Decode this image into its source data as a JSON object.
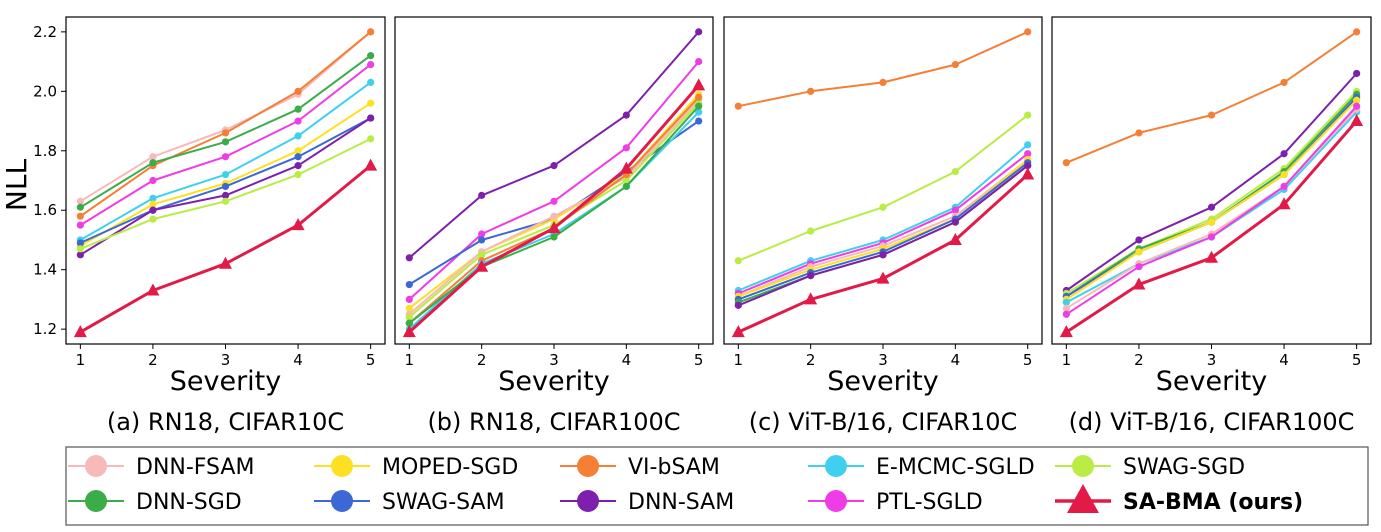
{
  "figure": {
    "ylabel": "NLL",
    "xlabel": "Severity",
    "legend_location": "bottom-center"
  },
  "legend": [
    {
      "name": "DNN-FSAM",
      "color": "#f8b9b9",
      "marker": "circle",
      "bold": false
    },
    {
      "name": "DNN-SGD",
      "color": "#3aac48",
      "marker": "circle",
      "bold": false
    },
    {
      "name": "MOPED-SGD",
      "color": "#fde021",
      "marker": "circle",
      "bold": false
    },
    {
      "name": "SWAG-SAM",
      "color": "#3c68d6",
      "marker": "circle",
      "bold": false
    },
    {
      "name": "VI-bSAM",
      "color": "#f47f35",
      "marker": "circle",
      "bold": false
    },
    {
      "name": "DNN-SAM",
      "color": "#7d20ad",
      "marker": "circle",
      "bold": false
    },
    {
      "name": "E-MCMC-SGLD",
      "color": "#3fd0ef",
      "marker": "circle",
      "bold": false
    },
    {
      "name": "PTL-SGLD",
      "color": "#f03ce6",
      "marker": "circle",
      "bold": false
    },
    {
      "name": "SWAG-SGD",
      "color": "#b9ec45",
      "marker": "circle",
      "bold": false
    },
    {
      "name": "SA-BMA (ours)",
      "color": "#e21a48",
      "marker": "triangle",
      "bold": true
    }
  ],
  "chart_data": [
    {
      "type": "line",
      "caption": "(a) RN18, CIFAR10C",
      "xlabel": "Severity",
      "ylabel": "NLL",
      "x": [
        1,
        2,
        3,
        4,
        5
      ],
      "xticks": [
        "1",
        "2",
        "3",
        "4",
        "5"
      ],
      "yticks": [
        "1.2",
        "1.4",
        "1.6",
        "1.8",
        "2.0",
        "2.2"
      ],
      "ylim": [
        1.15,
        2.25
      ],
      "series": [
        {
          "name": "DNN-FSAM",
          "values": [
            1.63,
            1.78,
            1.87,
            1.99,
            2.2
          ]
        },
        {
          "name": "VI-bSAM",
          "values": [
            1.58,
            1.75,
            1.86,
            2.0,
            2.2
          ]
        },
        {
          "name": "DNN-SGD",
          "values": [
            1.61,
            1.76,
            1.83,
            1.94,
            2.12
          ]
        },
        {
          "name": "E-MCMC-SGLD",
          "values": [
            1.5,
            1.64,
            1.72,
            1.85,
            2.03
          ]
        },
        {
          "name": "PTL-SGLD",
          "values": [
            1.55,
            1.7,
            1.78,
            1.9,
            2.09
          ]
        },
        {
          "name": "MOPED-SGD",
          "values": [
            1.48,
            1.62,
            1.69,
            1.8,
            1.96
          ]
        },
        {
          "name": "SWAG-SAM",
          "values": [
            1.49,
            1.6,
            1.68,
            1.78,
            1.91
          ]
        },
        {
          "name": "DNN-SAM",
          "values": [
            1.45,
            1.6,
            1.65,
            1.75,
            1.91
          ]
        },
        {
          "name": "SWAG-SGD",
          "values": [
            1.47,
            1.57,
            1.63,
            1.72,
            1.84
          ]
        },
        {
          "name": "SA-BMA (ours)",
          "values": [
            1.19,
            1.33,
            1.42,
            1.55,
            1.75
          ]
        }
      ]
    },
    {
      "type": "line",
      "caption": "(b) RN18, CIFAR100C",
      "xlabel": "Severity",
      "x": [
        1,
        2,
        3,
        4,
        5
      ],
      "xticks": [
        "1",
        "2",
        "3",
        "4",
        "5"
      ],
      "yticks": [],
      "ylim": [
        1.15,
        2.25
      ],
      "series": [
        {
          "name": "DNN-SAM",
          "values": [
            1.44,
            1.65,
            1.75,
            1.92,
            2.2
          ]
        },
        {
          "name": "PTL-SGLD",
          "values": [
            1.3,
            1.52,
            1.63,
            1.81,
            2.1
          ]
        },
        {
          "name": "SWAG-SAM",
          "values": [
            1.35,
            1.5,
            1.57,
            1.73,
            1.9
          ]
        },
        {
          "name": "MOPED-SGD",
          "values": [
            1.27,
            1.46,
            1.57,
            1.72,
            1.99
          ]
        },
        {
          "name": "DNN-FSAM",
          "values": [
            1.25,
            1.46,
            1.58,
            1.71,
            1.97
          ]
        },
        {
          "name": "SWAG-SGD",
          "values": [
            1.24,
            1.45,
            1.55,
            1.7,
            1.96
          ]
        },
        {
          "name": "VI-bSAM",
          "values": [
            1.22,
            1.43,
            1.54,
            1.72,
            1.98
          ]
        },
        {
          "name": "E-MCMC-SGLD",
          "values": [
            1.2,
            1.42,
            1.52,
            1.68,
            1.93
          ]
        },
        {
          "name": "DNN-SGD",
          "values": [
            1.22,
            1.41,
            1.51,
            1.68,
            1.95
          ]
        },
        {
          "name": "SA-BMA (ours)",
          "values": [
            1.19,
            1.41,
            1.54,
            1.74,
            2.02
          ]
        }
      ]
    },
    {
      "type": "line",
      "caption": "(c) ViT-B/16, CIFAR10C",
      "xlabel": "Severity",
      "x": [
        1,
        2,
        3,
        4,
        5
      ],
      "xticks": [
        "1",
        "2",
        "3",
        "4",
        "5"
      ],
      "yticks": [],
      "ylim": [
        1.15,
        2.25
      ],
      "series": [
        {
          "name": "VI-bSAM",
          "values": [
            1.95,
            2.0,
            2.03,
            2.09,
            2.2
          ]
        },
        {
          "name": "SWAG-SGD",
          "values": [
            1.43,
            1.53,
            1.61,
            1.73,
            1.92
          ]
        },
        {
          "name": "E-MCMC-SGLD",
          "values": [
            1.33,
            1.43,
            1.5,
            1.61,
            1.82
          ]
        },
        {
          "name": "PTL-SGLD",
          "values": [
            1.32,
            1.42,
            1.49,
            1.6,
            1.79
          ]
        },
        {
          "name": "DNN-FSAM",
          "values": [
            1.31,
            1.41,
            1.48,
            1.58,
            1.77
          ]
        },
        {
          "name": "MOPED-SGD",
          "values": [
            1.31,
            1.4,
            1.47,
            1.57,
            1.77
          ]
        },
        {
          "name": "SWAG-SAM",
          "values": [
            1.3,
            1.39,
            1.46,
            1.57,
            1.76
          ]
        },
        {
          "name": "DNN-SGD",
          "values": [
            1.29,
            1.38,
            1.45,
            1.56,
            1.75
          ]
        },
        {
          "name": "DNN-SAM",
          "values": [
            1.28,
            1.38,
            1.45,
            1.56,
            1.75
          ]
        },
        {
          "name": "SA-BMA (ours)",
          "values": [
            1.19,
            1.3,
            1.37,
            1.5,
            1.72
          ]
        }
      ]
    },
    {
      "type": "line",
      "caption": "(d) ViT-B/16, CIFAR100C",
      "xlabel": "Severity",
      "x": [
        1,
        2,
        3,
        4,
        5
      ],
      "xticks": [
        "1",
        "2",
        "3",
        "4",
        "5"
      ],
      "yticks": [],
      "ylim": [
        1.15,
        2.25
      ],
      "series": [
        {
          "name": "VI-bSAM",
          "values": [
            1.76,
            1.86,
            1.92,
            2.03,
            2.2
          ]
        },
        {
          "name": "DNN-SAM",
          "values": [
            1.33,
            1.5,
            1.61,
            1.79,
            2.06
          ]
        },
        {
          "name": "SWAG-SGD",
          "values": [
            1.32,
            1.47,
            1.57,
            1.74,
            2.0
          ]
        },
        {
          "name": "DNN-SGD",
          "values": [
            1.31,
            1.47,
            1.56,
            1.73,
            1.99
          ]
        },
        {
          "name": "SWAG-SAM",
          "values": [
            1.31,
            1.46,
            1.56,
            1.72,
            1.98
          ]
        },
        {
          "name": "MOPED-SGD",
          "values": [
            1.3,
            1.46,
            1.56,
            1.72,
            1.97
          ]
        },
        {
          "name": "E-MCMC-SGLD",
          "values": [
            1.29,
            1.42,
            1.51,
            1.67,
            1.93
          ]
        },
        {
          "name": "DNN-FSAM",
          "values": [
            1.27,
            1.42,
            1.52,
            1.68,
            1.94
          ]
        },
        {
          "name": "PTL-SGLD",
          "values": [
            1.25,
            1.41,
            1.51,
            1.68,
            1.95
          ]
        },
        {
          "name": "SA-BMA (ours)",
          "values": [
            1.19,
            1.35,
            1.44,
            1.62,
            1.9
          ]
        }
      ]
    }
  ]
}
